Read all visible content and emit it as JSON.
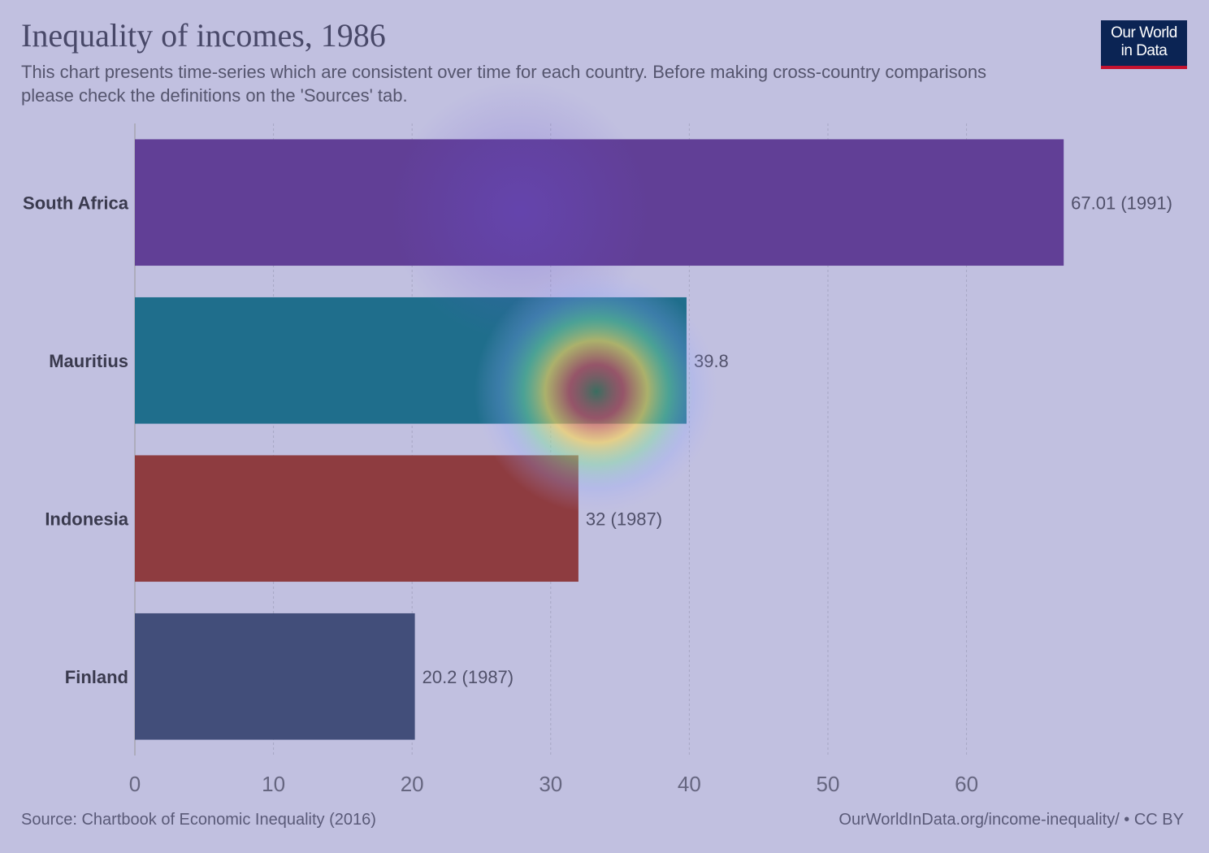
{
  "title": "Inequality of incomes, 1986",
  "subtitle": "This chart presents time-series which are consistent over time for each country. Before making cross-country comparisons please check the definitions on the 'Sources' tab.",
  "logo": {
    "line1": "Our World",
    "line2": "in Data"
  },
  "footer": {
    "source": "Source: Chartbook of Economic Inequality (2016)",
    "link": "OurWorldInData.org/income-inequality/ • CC BY"
  },
  "chart_data": {
    "type": "bar",
    "orientation": "horizontal",
    "categories": [
      "South Africa",
      "Mauritius",
      "Indonesia",
      "Finland"
    ],
    "values": [
      67.01,
      39.8,
      32,
      20.2
    ],
    "value_labels": [
      "67.01 (1991)",
      "39.8",
      "32 (1987)",
      "20.2 (1987)"
    ],
    "colors": [
      "#613f96",
      "#1f6e8c",
      "#8e3c40",
      "#424e7a"
    ],
    "xlim": [
      0,
      67
    ],
    "xticks": [
      0,
      10,
      20,
      30,
      40,
      50,
      60
    ],
    "grid": true
  }
}
